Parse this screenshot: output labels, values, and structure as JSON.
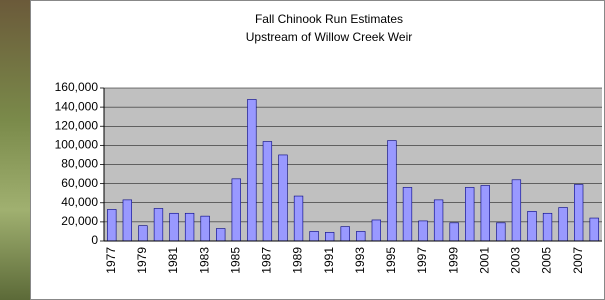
{
  "chart_data": {
    "type": "bar",
    "title": "Fall Chinook Run Estimates",
    "subtitle": "Upstream of Willow Creek Weir",
    "categories": [
      "1977",
      null,
      "1979",
      null,
      "1981",
      null,
      "1983",
      null,
      "1985",
      null,
      "1987",
      null,
      "1989",
      null,
      "1991",
      null,
      "1993",
      null,
      "1995",
      null,
      "1997",
      null,
      "1999",
      null,
      "2001",
      null,
      "2003",
      null,
      "2005",
      null,
      "2007",
      null
    ],
    "values": [
      33000,
      43000,
      16000,
      34000,
      29000,
      29000,
      26000,
      13000,
      65000,
      148000,
      104000,
      90000,
      47000,
      10000,
      9000,
      15000,
      10000,
      22000,
      105000,
      56000,
      21000,
      43000,
      19000,
      56000,
      58000,
      19000,
      64000,
      31000,
      29000,
      35000,
      59000,
      24000
    ],
    "color": "#9999ff",
    "ylim": [
      0,
      160000
    ],
    "yticks": [
      0,
      {
        "value": 20000,
        "label": "20,000"
      },
      {
        "value": 40000,
        "label": "40,000"
      },
      {
        "value": 60000,
        "label": "60,000"
      },
      {
        "value": 80000,
        "label": "80,000"
      },
      {
        "value": 100000,
        "label": "100,000"
      },
      {
        "value": 120000,
        "label": "120,000"
      },
      {
        "value": 140000,
        "label": "140,000"
      },
      {
        "value": 160000,
        "label": "160,000"
      }
    ],
    "grid": true
  }
}
